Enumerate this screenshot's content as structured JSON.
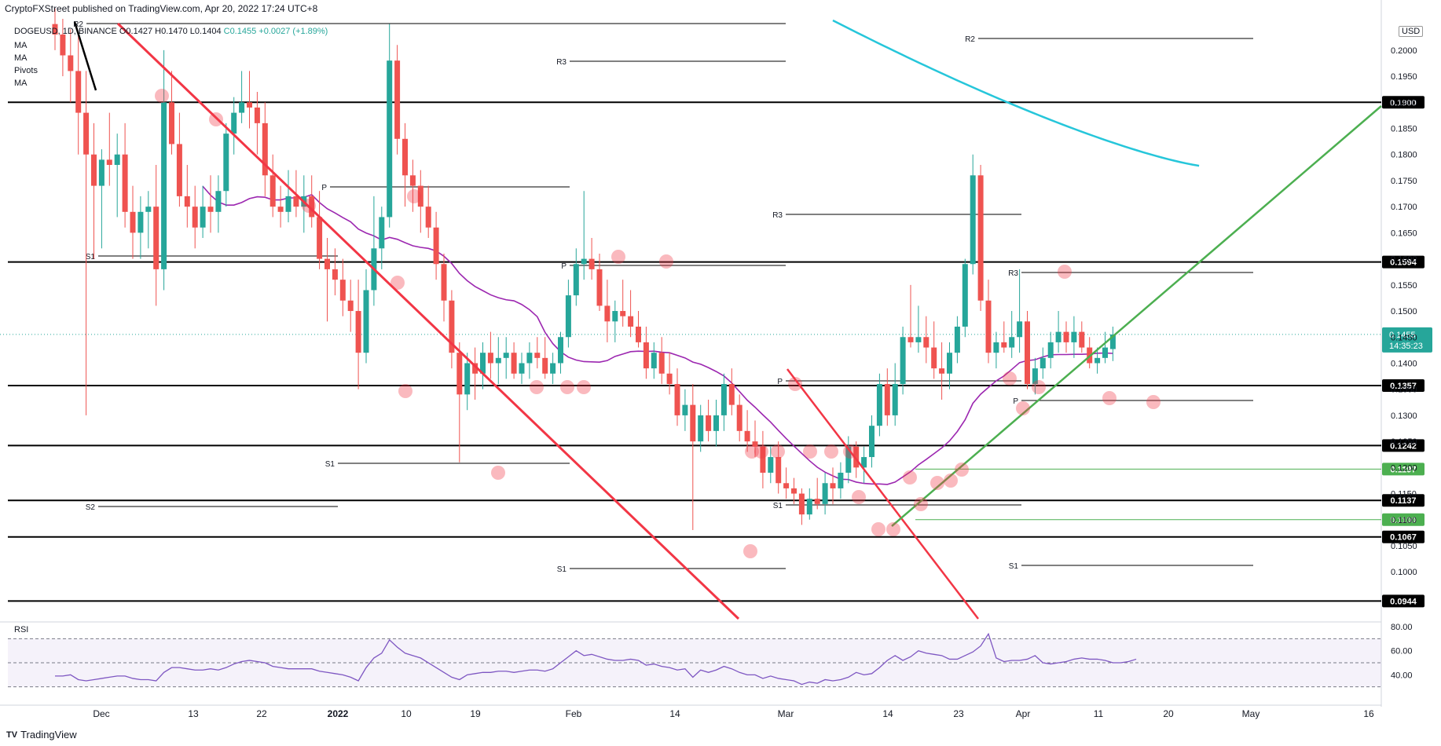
{
  "header": {
    "publisher_line": "CryptoFXStreet published on TradingView.com, Apr 20, 2022 17:24 UTC+8",
    "symbol_line": "DOGEUSD, 1D, BINANCE",
    "ohlc_o": "O0.1427",
    "ohlc_h": "H0.1470",
    "ohlc_l": "L0.1404",
    "ohlc_c": "C0.1455",
    "ohlc_chg": "+0.0027 (+1.89%)",
    "indicators": [
      "MA",
      "MA",
      "Pivots",
      "MA"
    ],
    "currency": "USD"
  },
  "footer": {
    "brand": "TradingView"
  },
  "chart_data": {
    "type": "candlestick",
    "title": "DOGEUSD, 1D, BINANCE",
    "x_ticks": [
      "Dec",
      "13",
      "22",
      "2022",
      "10",
      "19",
      "Feb",
      "14",
      "Mar",
      "14",
      "23",
      "Apr",
      "11",
      "20",
      "May",
      "16"
    ],
    "y_ticks": [
      "0.1000",
      "0.1050",
      "0.1100",
      "0.1150",
      "0.1200",
      "0.1250",
      "0.1300",
      "0.1350",
      "0.1400",
      "0.1450",
      "0.1500",
      "0.1550",
      "0.1600",
      "0.1650",
      "0.1700",
      "0.1750",
      "0.1800",
      "0.1850",
      "0.1900",
      "0.1950",
      "0.2000"
    ],
    "ylim": [
      0.091,
      0.206
    ],
    "last_price": "0.1455",
    "countdown": "14:35:23",
    "horizontal_levels": [
      {
        "value": 0.19,
        "label": "0.1900",
        "color": "#000000"
      },
      {
        "value": 0.1594,
        "label": "0.1594",
        "color": "#000000"
      },
      {
        "value": 0.1357,
        "label": "0.1357",
        "color": "#000000"
      },
      {
        "value": 0.1242,
        "label": "0.1242",
        "color": "#000000"
      },
      {
        "value": 0.1197,
        "label": "0.1197",
        "color": "#4caf50"
      },
      {
        "value": 0.1137,
        "label": "0.1137",
        "color": "#000000"
      },
      {
        "value": 0.11,
        "label": "0.1100",
        "color": "#4caf50"
      },
      {
        "value": 0.1067,
        "label": "0.1067",
        "color": "#000000"
      },
      {
        "value": 0.0944,
        "label": "0.0944",
        "color": "#000000"
      }
    ],
    "pivot_labels": [
      "R2",
      "R3",
      "R1",
      "P",
      "S1",
      "S2"
    ],
    "candles": [
      {
        "o": 0.205,
        "h": 0.208,
        "l": 0.2,
        "c": 0.203
      },
      {
        "o": 0.203,
        "h": 0.206,
        "l": 0.195,
        "c": 0.199
      },
      {
        "o": 0.199,
        "h": 0.204,
        "l": 0.19,
        "c": 0.196
      },
      {
        "o": 0.196,
        "h": 0.203,
        "l": 0.18,
        "c": 0.188
      },
      {
        "o": 0.188,
        "h": 0.196,
        "l": 0.13,
        "c": 0.18
      },
      {
        "o": 0.18,
        "h": 0.186,
        "l": 0.16,
        "c": 0.174
      },
      {
        "o": 0.174,
        "h": 0.181,
        "l": 0.162,
        "c": 0.179
      },
      {
        "o": 0.179,
        "h": 0.188,
        "l": 0.174,
        "c": 0.178
      },
      {
        "o": 0.178,
        "h": 0.184,
        "l": 0.168,
        "c": 0.18
      },
      {
        "o": 0.18,
        "h": 0.186,
        "l": 0.166,
        "c": 0.169
      },
      {
        "o": 0.169,
        "h": 0.174,
        "l": 0.16,
        "c": 0.165
      },
      {
        "o": 0.165,
        "h": 0.172,
        "l": 0.16,
        "c": 0.169
      },
      {
        "o": 0.169,
        "h": 0.173,
        "l": 0.162,
        "c": 0.17
      },
      {
        "o": 0.17,
        "h": 0.178,
        "l": 0.151,
        "c": 0.158
      },
      {
        "o": 0.158,
        "h": 0.2,
        "l": 0.154,
        "c": 0.19
      },
      {
        "o": 0.19,
        "h": 0.196,
        "l": 0.18,
        "c": 0.182
      },
      {
        "o": 0.182,
        "h": 0.188,
        "l": 0.17,
        "c": 0.172
      },
      {
        "o": 0.172,
        "h": 0.178,
        "l": 0.166,
        "c": 0.17
      },
      {
        "o": 0.17,
        "h": 0.174,
        "l": 0.162,
        "c": 0.166
      },
      {
        "o": 0.166,
        "h": 0.174,
        "l": 0.164,
        "c": 0.17
      },
      {
        "o": 0.17,
        "h": 0.176,
        "l": 0.165,
        "c": 0.169
      },
      {
        "o": 0.169,
        "h": 0.176,
        "l": 0.165,
        "c": 0.173
      },
      {
        "o": 0.173,
        "h": 0.186,
        "l": 0.17,
        "c": 0.184
      },
      {
        "o": 0.184,
        "h": 0.191,
        "l": 0.18,
        "c": 0.188
      },
      {
        "o": 0.188,
        "h": 0.196,
        "l": 0.186,
        "c": 0.19
      },
      {
        "o": 0.19,
        "h": 0.196,
        "l": 0.185,
        "c": 0.189
      },
      {
        "o": 0.189,
        "h": 0.192,
        "l": 0.18,
        "c": 0.186
      },
      {
        "o": 0.186,
        "h": 0.19,
        "l": 0.172,
        "c": 0.176
      },
      {
        "o": 0.176,
        "h": 0.18,
        "l": 0.168,
        "c": 0.17
      },
      {
        "o": 0.17,
        "h": 0.174,
        "l": 0.166,
        "c": 0.169
      },
      {
        "o": 0.169,
        "h": 0.177,
        "l": 0.167,
        "c": 0.172
      },
      {
        "o": 0.172,
        "h": 0.177,
        "l": 0.168,
        "c": 0.17
      },
      {
        "o": 0.17,
        "h": 0.176,
        "l": 0.165,
        "c": 0.172
      },
      {
        "o": 0.172,
        "h": 0.176,
        "l": 0.166,
        "c": 0.168
      },
      {
        "o": 0.168,
        "h": 0.173,
        "l": 0.158,
        "c": 0.16
      },
      {
        "o": 0.16,
        "h": 0.164,
        "l": 0.148,
        "c": 0.158
      },
      {
        "o": 0.158,
        "h": 0.162,
        "l": 0.153,
        "c": 0.156
      },
      {
        "o": 0.156,
        "h": 0.16,
        "l": 0.149,
        "c": 0.152
      },
      {
        "o": 0.152,
        "h": 0.156,
        "l": 0.146,
        "c": 0.15
      },
      {
        "o": 0.15,
        "h": 0.156,
        "l": 0.135,
        "c": 0.142
      },
      {
        "o": 0.142,
        "h": 0.158,
        "l": 0.14,
        "c": 0.154
      },
      {
        "o": 0.154,
        "h": 0.172,
        "l": 0.151,
        "c": 0.162
      },
      {
        "o": 0.162,
        "h": 0.17,
        "l": 0.158,
        "c": 0.168
      },
      {
        "o": 0.168,
        "h": 0.205,
        "l": 0.166,
        "c": 0.198
      },
      {
        "o": 0.198,
        "h": 0.201,
        "l": 0.18,
        "c": 0.183
      },
      {
        "o": 0.183,
        "h": 0.186,
        "l": 0.17,
        "c": 0.176
      },
      {
        "o": 0.176,
        "h": 0.179,
        "l": 0.169,
        "c": 0.174
      },
      {
        "o": 0.174,
        "h": 0.177,
        "l": 0.165,
        "c": 0.17
      },
      {
        "o": 0.17,
        "h": 0.174,
        "l": 0.164,
        "c": 0.166
      },
      {
        "o": 0.166,
        "h": 0.169,
        "l": 0.156,
        "c": 0.159
      },
      {
        "o": 0.159,
        "h": 0.161,
        "l": 0.148,
        "c": 0.152
      },
      {
        "o": 0.152,
        "h": 0.154,
        "l": 0.139,
        "c": 0.142
      },
      {
        "o": 0.142,
        "h": 0.144,
        "l": 0.121,
        "c": 0.134
      },
      {
        "o": 0.134,
        "h": 0.142,
        "l": 0.131,
        "c": 0.14
      },
      {
        "o": 0.14,
        "h": 0.143,
        "l": 0.133,
        "c": 0.138
      },
      {
        "o": 0.138,
        "h": 0.144,
        "l": 0.135,
        "c": 0.142
      },
      {
        "o": 0.142,
        "h": 0.146,
        "l": 0.137,
        "c": 0.14
      },
      {
        "o": 0.14,
        "h": 0.145,
        "l": 0.136,
        "c": 0.141
      },
      {
        "o": 0.141,
        "h": 0.145,
        "l": 0.137,
        "c": 0.142
      },
      {
        "o": 0.142,
        "h": 0.144,
        "l": 0.137,
        "c": 0.138
      },
      {
        "o": 0.138,
        "h": 0.142,
        "l": 0.136,
        "c": 0.14
      },
      {
        "o": 0.14,
        "h": 0.144,
        "l": 0.137,
        "c": 0.142
      },
      {
        "o": 0.142,
        "h": 0.145,
        "l": 0.139,
        "c": 0.141
      },
      {
        "o": 0.141,
        "h": 0.145,
        "l": 0.137,
        "c": 0.138
      },
      {
        "o": 0.138,
        "h": 0.142,
        "l": 0.136,
        "c": 0.14
      },
      {
        "o": 0.14,
        "h": 0.146,
        "l": 0.138,
        "c": 0.145
      },
      {
        "o": 0.145,
        "h": 0.156,
        "l": 0.143,
        "c": 0.153
      },
      {
        "o": 0.153,
        "h": 0.162,
        "l": 0.151,
        "c": 0.159
      },
      {
        "o": 0.159,
        "h": 0.173,
        "l": 0.156,
        "c": 0.16
      },
      {
        "o": 0.16,
        "h": 0.164,
        "l": 0.156,
        "c": 0.158
      },
      {
        "o": 0.158,
        "h": 0.161,
        "l": 0.15,
        "c": 0.151
      },
      {
        "o": 0.151,
        "h": 0.156,
        "l": 0.144,
        "c": 0.148
      },
      {
        "o": 0.148,
        "h": 0.152,
        "l": 0.144,
        "c": 0.15
      },
      {
        "o": 0.15,
        "h": 0.156,
        "l": 0.147,
        "c": 0.149
      },
      {
        "o": 0.149,
        "h": 0.154,
        "l": 0.145,
        "c": 0.147
      },
      {
        "o": 0.147,
        "h": 0.15,
        "l": 0.143,
        "c": 0.144
      },
      {
        "o": 0.144,
        "h": 0.147,
        "l": 0.137,
        "c": 0.139
      },
      {
        "o": 0.139,
        "h": 0.144,
        "l": 0.137,
        "c": 0.142
      },
      {
        "o": 0.142,
        "h": 0.145,
        "l": 0.136,
        "c": 0.138
      },
      {
        "o": 0.138,
        "h": 0.142,
        "l": 0.134,
        "c": 0.136
      },
      {
        "o": 0.136,
        "h": 0.139,
        "l": 0.128,
        "c": 0.13
      },
      {
        "o": 0.13,
        "h": 0.135,
        "l": 0.127,
        "c": 0.132
      },
      {
        "o": 0.132,
        "h": 0.136,
        "l": 0.108,
        "c": 0.125
      },
      {
        "o": 0.125,
        "h": 0.132,
        "l": 0.123,
        "c": 0.13
      },
      {
        "o": 0.13,
        "h": 0.133,
        "l": 0.125,
        "c": 0.127
      },
      {
        "o": 0.127,
        "h": 0.133,
        "l": 0.124,
        "c": 0.13
      },
      {
        "o": 0.13,
        "h": 0.138,
        "l": 0.127,
        "c": 0.136
      },
      {
        "o": 0.136,
        "h": 0.139,
        "l": 0.13,
        "c": 0.132
      },
      {
        "o": 0.132,
        "h": 0.134,
        "l": 0.125,
        "c": 0.127
      },
      {
        "o": 0.127,
        "h": 0.131,
        "l": 0.123,
        "c": 0.125
      },
      {
        "o": 0.125,
        "h": 0.129,
        "l": 0.122,
        "c": 0.124
      },
      {
        "o": 0.124,
        "h": 0.127,
        "l": 0.116,
        "c": 0.119
      },
      {
        "o": 0.119,
        "h": 0.124,
        "l": 0.117,
        "c": 0.122
      },
      {
        "o": 0.122,
        "h": 0.125,
        "l": 0.115,
        "c": 0.117
      },
      {
        "o": 0.117,
        "h": 0.12,
        "l": 0.114,
        "c": 0.116
      },
      {
        "o": 0.116,
        "h": 0.118,
        "l": 0.113,
        "c": 0.115
      },
      {
        "o": 0.115,
        "h": 0.116,
        "l": 0.109,
        "c": 0.111
      },
      {
        "o": 0.111,
        "h": 0.116,
        "l": 0.11,
        "c": 0.114
      },
      {
        "o": 0.114,
        "h": 0.118,
        "l": 0.112,
        "c": 0.113
      },
      {
        "o": 0.113,
        "h": 0.119,
        "l": 0.111,
        "c": 0.117
      },
      {
        "o": 0.117,
        "h": 0.12,
        "l": 0.113,
        "c": 0.116
      },
      {
        "o": 0.116,
        "h": 0.121,
        "l": 0.114,
        "c": 0.119
      },
      {
        "o": 0.119,
        "h": 0.126,
        "l": 0.117,
        "c": 0.124
      },
      {
        "o": 0.124,
        "h": 0.125,
        "l": 0.118,
        "c": 0.12
      },
      {
        "o": 0.12,
        "h": 0.124,
        "l": 0.117,
        "c": 0.122
      },
      {
        "o": 0.122,
        "h": 0.13,
        "l": 0.12,
        "c": 0.128
      },
      {
        "o": 0.128,
        "h": 0.138,
        "l": 0.126,
        "c": 0.136
      },
      {
        "o": 0.136,
        "h": 0.139,
        "l": 0.128,
        "c": 0.13
      },
      {
        "o": 0.13,
        "h": 0.14,
        "l": 0.128,
        "c": 0.136
      },
      {
        "o": 0.136,
        "h": 0.147,
        "l": 0.134,
        "c": 0.145
      },
      {
        "o": 0.145,
        "h": 0.155,
        "l": 0.143,
        "c": 0.144
      },
      {
        "o": 0.144,
        "h": 0.151,
        "l": 0.142,
        "c": 0.145
      },
      {
        "o": 0.145,
        "h": 0.149,
        "l": 0.14,
        "c": 0.143
      },
      {
        "o": 0.143,
        "h": 0.148,
        "l": 0.137,
        "c": 0.139
      },
      {
        "o": 0.139,
        "h": 0.144,
        "l": 0.133,
        "c": 0.138
      },
      {
        "o": 0.138,
        "h": 0.144,
        "l": 0.135,
        "c": 0.142
      },
      {
        "o": 0.142,
        "h": 0.149,
        "l": 0.14,
        "c": 0.147
      },
      {
        "o": 0.147,
        "h": 0.16,
        "l": 0.145,
        "c": 0.159
      },
      {
        "o": 0.159,
        "h": 0.18,
        "l": 0.157,
        "c": 0.176
      },
      {
        "o": 0.176,
        "h": 0.178,
        "l": 0.15,
        "c": 0.152
      },
      {
        "o": 0.152,
        "h": 0.156,
        "l": 0.14,
        "c": 0.142
      },
      {
        "o": 0.142,
        "h": 0.146,
        "l": 0.139,
        "c": 0.144
      },
      {
        "o": 0.144,
        "h": 0.148,
        "l": 0.142,
        "c": 0.143
      },
      {
        "o": 0.143,
        "h": 0.15,
        "l": 0.141,
        "c": 0.145
      },
      {
        "o": 0.145,
        "h": 0.158,
        "l": 0.142,
        "c": 0.148
      },
      {
        "o": 0.148,
        "h": 0.15,
        "l": 0.135,
        "c": 0.136
      },
      {
        "o": 0.136,
        "h": 0.141,
        "l": 0.134,
        "c": 0.139
      },
      {
        "o": 0.139,
        "h": 0.143,
        "l": 0.137,
        "c": 0.141
      },
      {
        "o": 0.141,
        "h": 0.146,
        "l": 0.139,
        "c": 0.144
      },
      {
        "o": 0.144,
        "h": 0.15,
        "l": 0.142,
        "c": 0.146
      },
      {
        "o": 0.146,
        "h": 0.148,
        "l": 0.142,
        "c": 0.144
      },
      {
        "o": 0.144,
        "h": 0.149,
        "l": 0.141,
        "c": 0.146
      },
      {
        "o": 0.146,
        "h": 0.148,
        "l": 0.142,
        "c": 0.143
      },
      {
        "o": 0.143,
        "h": 0.145,
        "l": 0.139,
        "c": 0.14
      },
      {
        "o": 0.14,
        "h": 0.143,
        "l": 0.138,
        "c": 0.141
      },
      {
        "o": 0.141,
        "h": 0.146,
        "l": 0.14,
        "c": 0.143
      },
      {
        "o": 0.1427,
        "h": 0.147,
        "l": 0.1404,
        "c": 0.1455
      }
    ],
    "rsi": {
      "label": "RSI",
      "ylim": [
        20,
        82
      ],
      "ticks": [
        "40.00",
        "60.00",
        "80.00"
      ],
      "band": [
        30,
        70
      ],
      "values": [
        39,
        39,
        40,
        36,
        35,
        36,
        37,
        38,
        39,
        39,
        37,
        36,
        36,
        35,
        42,
        46,
        46,
        45,
        44,
        44,
        45,
        44,
        46,
        49,
        51,
        52,
        51,
        50,
        47,
        46,
        45,
        45,
        45,
        45,
        43,
        42,
        41,
        40,
        38,
        35,
        46,
        54,
        58,
        69,
        63,
        58,
        56,
        54,
        50,
        46,
        42,
        38,
        36,
        40,
        41,
        42,
        42,
        43,
        43,
        42,
        43,
        44,
        44,
        43,
        45,
        50,
        55,
        60,
        56,
        57,
        55,
        53,
        52,
        52,
        53,
        52,
        48,
        49,
        47,
        46,
        44,
        45,
        38,
        44,
        42,
        44,
        47,
        45,
        42,
        40,
        40,
        37,
        39,
        37,
        36,
        35,
        32,
        34,
        33,
        36,
        35,
        36,
        38,
        42,
        40,
        41,
        46,
        52,
        56,
        52,
        55,
        60,
        58,
        57,
        56,
        53,
        53,
        56,
        59,
        64,
        74,
        54,
        51,
        52,
        52,
        53,
        56,
        50,
        49,
        50,
        51,
        53,
        54,
        53,
        53,
        52,
        50,
        50,
        51,
        53
      ]
    },
    "ma": [
      {
        "name": "MA",
        "color": "#9c27b0"
      },
      {
        "name": "MA",
        "color": "#26c6da"
      }
    ]
  }
}
